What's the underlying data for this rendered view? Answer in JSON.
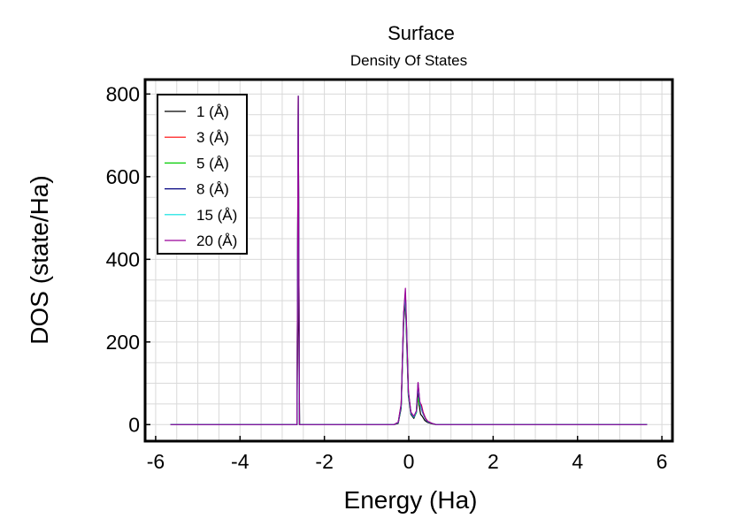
{
  "chart_data": {
    "type": "line",
    "title": "Surface",
    "subtitle": "Density Of States",
    "xlabel": "Energy (Ha)",
    "ylabel": "DOS (state/Ha)",
    "xlim": [
      -6.25,
      6.25
    ],
    "ylim": [
      -40,
      835
    ],
    "xticks": [
      -6,
      -4,
      -2,
      0,
      2,
      4,
      6
    ],
    "yticks": [
      0,
      200,
      400,
      600,
      800
    ],
    "grid": true,
    "legend_position": "top-left",
    "series": [
      {
        "name": "1 (Å)",
        "color": "#000000",
        "points": [
          [
            -5.65,
            0
          ],
          [
            -2.65,
            0
          ],
          [
            -2.62,
            395
          ],
          [
            -2.59,
            0
          ],
          [
            -0.35,
            0
          ],
          [
            -0.25,
            3
          ],
          [
            -0.18,
            40
          ],
          [
            -0.12,
            250
          ],
          [
            -0.08,
            300
          ],
          [
            -0.05,
            200
          ],
          [
            -0.01,
            70
          ],
          [
            0.05,
            25
          ],
          [
            0.12,
            15
          ],
          [
            0.18,
            30
          ],
          [
            0.22,
            75
          ],
          [
            0.25,
            45
          ],
          [
            0.28,
            25
          ],
          [
            0.32,
            20
          ],
          [
            0.38,
            10
          ],
          [
            0.45,
            5
          ],
          [
            0.55,
            2
          ],
          [
            0.65,
            0
          ],
          [
            5.65,
            0
          ]
        ]
      },
      {
        "name": "3 (Å)",
        "color": "#ff0000",
        "points": [
          [
            -5.65,
            0
          ],
          [
            -2.65,
            0
          ],
          [
            -2.62,
            795
          ],
          [
            -2.59,
            0
          ],
          [
            -0.35,
            0
          ],
          [
            -0.25,
            5
          ],
          [
            -0.18,
            50
          ],
          [
            -0.12,
            270
          ],
          [
            -0.08,
            310
          ],
          [
            -0.05,
            220
          ],
          [
            -0.01,
            80
          ],
          [
            0.05,
            30
          ],
          [
            0.12,
            20
          ],
          [
            0.18,
            30
          ],
          [
            0.22,
            60
          ],
          [
            0.26,
            50
          ],
          [
            0.3,
            48
          ],
          [
            0.34,
            30
          ],
          [
            0.4,
            15
          ],
          [
            0.45,
            8
          ],
          [
            0.55,
            3
          ],
          [
            0.65,
            0
          ],
          [
            5.65,
            0
          ]
        ]
      },
      {
        "name": "5 (Å)",
        "color": "#00cc00",
        "points": [
          [
            -5.65,
            0
          ],
          [
            -2.65,
            0
          ],
          [
            -2.62,
            795
          ],
          [
            -2.59,
            0
          ],
          [
            -0.35,
            0
          ],
          [
            -0.25,
            5
          ],
          [
            -0.18,
            45
          ],
          [
            -0.12,
            265
          ],
          [
            -0.08,
            305
          ],
          [
            -0.05,
            215
          ],
          [
            -0.01,
            75
          ],
          [
            0.05,
            28
          ],
          [
            0.12,
            18
          ],
          [
            0.18,
            28
          ],
          [
            0.22,
            65
          ],
          [
            0.26,
            48
          ],
          [
            0.3,
            42
          ],
          [
            0.34,
            28
          ],
          [
            0.4,
            14
          ],
          [
            0.45,
            7
          ],
          [
            0.55,
            3
          ],
          [
            0.65,
            0
          ],
          [
            5.65,
            0
          ]
        ]
      },
      {
        "name": "8 (Å)",
        "color": "#000080",
        "points": [
          [
            -5.65,
            0
          ],
          [
            -2.65,
            0
          ],
          [
            -2.62,
            795
          ],
          [
            -2.59,
            0
          ],
          [
            -0.35,
            0
          ],
          [
            -0.25,
            5
          ],
          [
            -0.18,
            45
          ],
          [
            -0.12,
            268
          ],
          [
            -0.08,
            318
          ],
          [
            -0.05,
            225
          ],
          [
            -0.01,
            78
          ],
          [
            0.05,
            28
          ],
          [
            0.12,
            18
          ],
          [
            0.18,
            32
          ],
          [
            0.22,
            100
          ],
          [
            0.26,
            55
          ],
          [
            0.3,
            38
          ],
          [
            0.34,
            26
          ],
          [
            0.4,
            13
          ],
          [
            0.45,
            7
          ],
          [
            0.55,
            3
          ],
          [
            0.65,
            0
          ],
          [
            5.65,
            0
          ]
        ]
      },
      {
        "name": "15 (Å)",
        "color": "#00e0e0",
        "points": [
          [
            -5.65,
            0
          ],
          [
            -2.65,
            0
          ],
          [
            -2.62,
            795
          ],
          [
            -2.59,
            0
          ],
          [
            -0.35,
            0
          ],
          [
            -0.25,
            5
          ],
          [
            -0.18,
            46
          ],
          [
            -0.12,
            266
          ],
          [
            -0.08,
            315
          ],
          [
            -0.05,
            222
          ],
          [
            -0.01,
            77
          ],
          [
            0.05,
            28
          ],
          [
            0.12,
            18
          ],
          [
            0.18,
            30
          ],
          [
            0.22,
            95
          ],
          [
            0.26,
            52
          ],
          [
            0.3,
            40
          ],
          [
            0.34,
            27
          ],
          [
            0.4,
            13
          ],
          [
            0.45,
            7
          ],
          [
            0.55,
            3
          ],
          [
            0.65,
            0
          ],
          [
            5.65,
            0
          ]
        ]
      },
      {
        "name": "20 (Å)",
        "color": "#990099",
        "points": [
          [
            -5.65,
            0
          ],
          [
            -2.65,
            0
          ],
          [
            -2.62,
            795
          ],
          [
            -2.59,
            0
          ],
          [
            -0.35,
            0
          ],
          [
            -0.25,
            6
          ],
          [
            -0.18,
            50
          ],
          [
            -0.12,
            272
          ],
          [
            -0.08,
            330
          ],
          [
            -0.05,
            230
          ],
          [
            -0.01,
            82
          ],
          [
            0.05,
            30
          ],
          [
            0.12,
            20
          ],
          [
            0.18,
            33
          ],
          [
            0.22,
            102
          ],
          [
            0.26,
            56
          ],
          [
            0.3,
            45
          ],
          [
            0.34,
            29
          ],
          [
            0.4,
            14
          ],
          [
            0.45,
            8
          ],
          [
            0.55,
            3
          ],
          [
            0.65,
            0
          ],
          [
            5.65,
            0
          ]
        ]
      }
    ]
  }
}
